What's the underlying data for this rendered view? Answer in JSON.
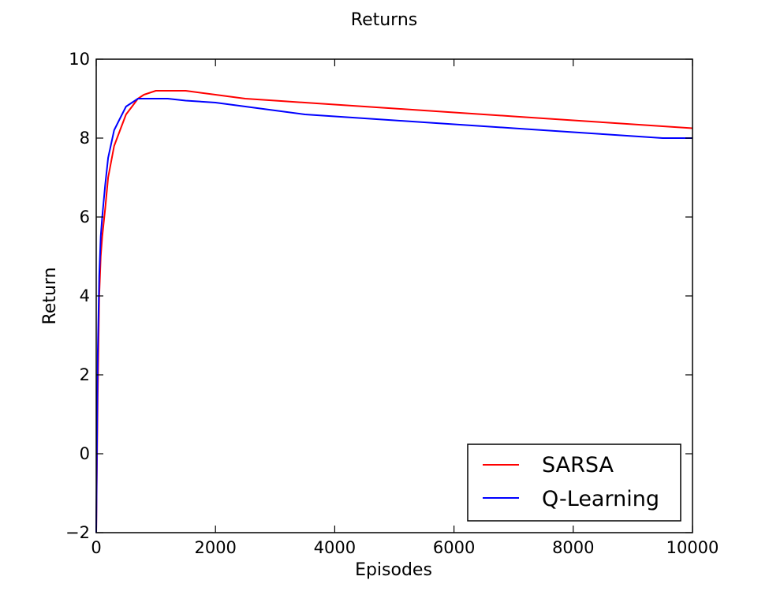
{
  "chart_data": {
    "type": "line",
    "title": "Returns",
    "xlabel": "Episodes",
    "ylabel": "Return",
    "xlim": [
      0,
      10000
    ],
    "ylim": [
      -2,
      10
    ],
    "grid": false,
    "legend_position": "bottom-right",
    "x_ticks": [
      0,
      2000,
      4000,
      6000,
      8000,
      10000
    ],
    "x_tick_labels": [
      "0",
      "2000",
      "4000",
      "6000",
      "8000",
      "10000"
    ],
    "y_ticks": [
      -2,
      0,
      2,
      4,
      6,
      8,
      10
    ],
    "y_tick_labels": [
      "−2",
      "0",
      "2",
      "4",
      "6",
      "8",
      "10"
    ],
    "x": [
      0,
      25,
      50,
      75,
      100,
      150,
      200,
      300,
      400,
      500,
      600,
      700,
      800,
      1000,
      1200,
      1500,
      2000,
      2500,
      3000,
      3500,
      4000,
      4500,
      5000,
      5500,
      6000,
      6500,
      7000,
      7500,
      8000,
      8500,
      9000,
      9500,
      10000
    ],
    "series": [
      {
        "name": "SARSA",
        "color": "#ff0000",
        "values": [
          -2.0,
          1.5,
          4.0,
          5.0,
          5.5,
          6.2,
          7.0,
          7.8,
          8.2,
          8.6,
          8.8,
          9.0,
          9.1,
          9.2,
          9.2,
          9.2,
          9.1,
          9.0,
          8.95,
          8.9,
          8.85,
          8.8,
          8.75,
          8.7,
          8.65,
          8.6,
          8.55,
          8.5,
          8.45,
          8.4,
          8.35,
          8.3,
          8.25
        ]
      },
      {
        "name": "Q-Learning",
        "color": "#0000ff",
        "values": [
          -2.0,
          2.5,
          4.5,
          5.5,
          6.0,
          6.8,
          7.5,
          8.2,
          8.5,
          8.8,
          8.9,
          9.0,
          9.0,
          9.0,
          9.0,
          8.95,
          8.9,
          8.8,
          8.7,
          8.6,
          8.55,
          8.5,
          8.45,
          8.4,
          8.35,
          8.3,
          8.25,
          8.2,
          8.15,
          8.1,
          8.05,
          8.0,
          8.0
        ]
      }
    ]
  }
}
